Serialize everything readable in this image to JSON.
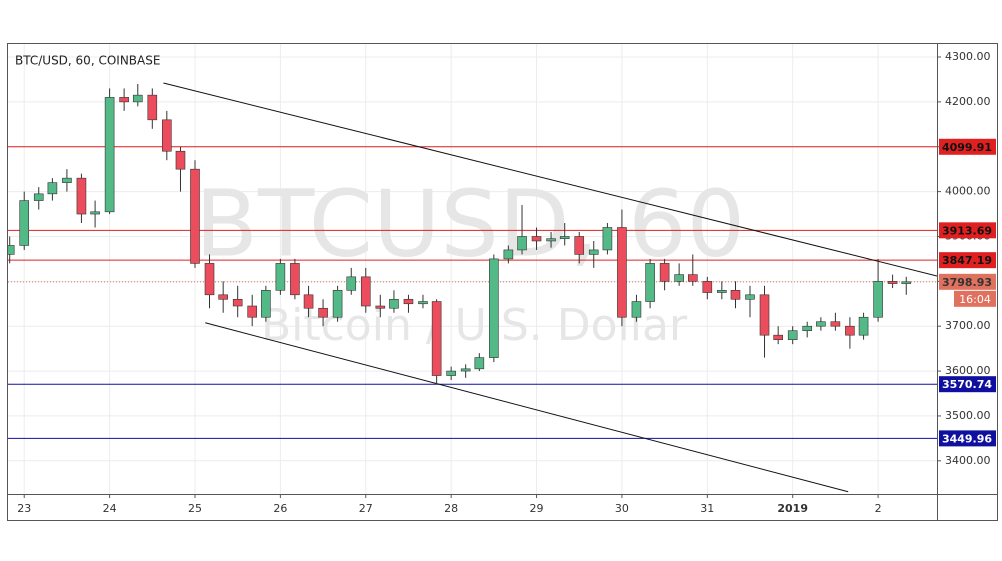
{
  "chart_data": {
    "type": "candlestick",
    "title": "BTC/USD, 60, COINBASE",
    "watermark": "BTCUSD, 60",
    "watermark_subtitle": "Bitcoin / U.S. Dollar",
    "up_color": "#53b987",
    "down_color": "#eb4d5c",
    "grid": true,
    "xlim": [
      -0.19,
      10.69
    ],
    "ylim": [
      3326,
      4329
    ],
    "xticks": [
      {
        "value": 0,
        "label": "23"
      },
      {
        "value": 1,
        "label": "24"
      },
      {
        "value": 2,
        "label": "25"
      },
      {
        "value": 3,
        "label": "26"
      },
      {
        "value": 4,
        "label": "27"
      },
      {
        "value": 5,
        "label": "28"
      },
      {
        "value": 6,
        "label": "29"
      },
      {
        "value": 7,
        "label": "30"
      },
      {
        "value": 8,
        "label": "31"
      },
      {
        "value": 9,
        "label": "2019"
      },
      {
        "value": 10,
        "label": "2"
      }
    ],
    "yticks": [
      {
        "value": 3400,
        "label": "3400.00"
      },
      {
        "value": 3500,
        "label": "3500.00"
      },
      {
        "value": 3600,
        "label": "3600.00"
      },
      {
        "value": 3700,
        "label": "3700.00"
      },
      {
        "value": 3800,
        "label": "3800.00"
      },
      {
        "value": 3900,
        "label": "3900.00"
      },
      {
        "value": 4000,
        "label": "4000.00"
      },
      {
        "value": 4100,
        "label": "4100.00"
      },
      {
        "value": 4200,
        "label": "4200.00"
      },
      {
        "value": 4300,
        "label": "4300.00"
      }
    ],
    "x": [
      -0.17,
      0,
      0.17,
      0.33,
      0.5,
      0.67,
      0.83,
      1,
      1.17,
      1.33,
      1.5,
      1.67,
      1.83,
      2,
      2.17,
      2.33,
      2.5,
      2.67,
      2.83,
      3,
      3.17,
      3.33,
      3.5,
      3.67,
      3.83,
      4,
      4.17,
      4.33,
      4.5,
      4.67,
      4.83,
      5,
      5.17,
      5.33,
      5.5,
      5.67,
      5.83,
      6,
      6.17,
      6.33,
      6.5,
      6.67,
      6.83,
      7,
      7.17,
      7.33,
      7.5,
      7.67,
      7.83,
      8,
      8.17,
      8.33,
      8.5,
      8.67,
      8.83,
      9,
      9.17,
      9.33,
      9.5,
      9.67,
      9.83,
      10,
      10.17,
      10.33
    ],
    "candles": [
      [
        3860,
        3900,
        3840,
        3880
      ],
      [
        3880,
        4000,
        3870,
        3980
      ],
      [
        3980,
        4010,
        3960,
        3995
      ],
      [
        3995,
        4030,
        3980,
        4020
      ],
      [
        4020,
        4050,
        4000,
        4030
      ],
      [
        4030,
        4040,
        3930,
        3950
      ],
      [
        3950,
        3980,
        3920,
        3955
      ],
      [
        3955,
        4230,
        3950,
        4210
      ],
      [
        4210,
        4230,
        4180,
        4200
      ],
      [
        4200,
        4240,
        4190,
        4215
      ],
      [
        4215,
        4230,
        4140,
        4160
      ],
      [
        4160,
        4180,
        4070,
        4090
      ],
      [
        4090,
        4100,
        4000,
        4050
      ],
      [
        4050,
        4070,
        3830,
        3840
      ],
      [
        3840,
        3860,
        3740,
        3770
      ],
      [
        3770,
        3800,
        3730,
        3760
      ],
      [
        3760,
        3790,
        3720,
        3745
      ],
      [
        3745,
        3770,
        3700,
        3720
      ],
      [
        3720,
        3790,
        3710,
        3780
      ],
      [
        3780,
        3850,
        3770,
        3840
      ],
      [
        3840,
        3850,
        3760,
        3770
      ],
      [
        3770,
        3790,
        3720,
        3740
      ],
      [
        3740,
        3760,
        3700,
        3720
      ],
      [
        3720,
        3790,
        3710,
        3780
      ],
      [
        3780,
        3830,
        3770,
        3810
      ],
      [
        3810,
        3830,
        3730,
        3745
      ],
      [
        3745,
        3770,
        3720,
        3740
      ],
      [
        3740,
        3780,
        3730,
        3760
      ],
      [
        3760,
        3770,
        3730,
        3750
      ],
      [
        3750,
        3770,
        3740,
        3755
      ],
      [
        3755,
        3760,
        3570,
        3590
      ],
      [
        3590,
        3610,
        3580,
        3600
      ],
      [
        3600,
        3615,
        3585,
        3605
      ],
      [
        3605,
        3640,
        3600,
        3630
      ],
      [
        3630,
        3860,
        3620,
        3850
      ],
      [
        3850,
        3880,
        3840,
        3870
      ],
      [
        3870,
        3970,
        3860,
        3900
      ],
      [
        3900,
        3920,
        3870,
        3890
      ],
      [
        3890,
        3910,
        3875,
        3895
      ],
      [
        3895,
        3930,
        3880,
        3900
      ],
      [
        3900,
        3910,
        3840,
        3860
      ],
      [
        3860,
        3890,
        3830,
        3870
      ],
      [
        3870,
        3930,
        3860,
        3920
      ],
      [
        3920,
        3960,
        3700,
        3720
      ],
      [
        3720,
        3770,
        3710,
        3755
      ],
      [
        3755,
        3850,
        3740,
        3840
      ],
      [
        3840,
        3850,
        3780,
        3800
      ],
      [
        3800,
        3840,
        3790,
        3815
      ],
      [
        3815,
        3860,
        3790,
        3800
      ],
      [
        3800,
        3810,
        3760,
        3775
      ],
      [
        3775,
        3800,
        3760,
        3780
      ],
      [
        3780,
        3800,
        3740,
        3760
      ],
      [
        3760,
        3790,
        3720,
        3770
      ],
      [
        3770,
        3790,
        3630,
        3680
      ],
      [
        3680,
        3700,
        3660,
        3670
      ],
      [
        3670,
        3700,
        3660,
        3690
      ],
      [
        3690,
        3710,
        3675,
        3700
      ],
      [
        3700,
        3720,
        3690,
        3710
      ],
      [
        3710,
        3730,
        3690,
        3700
      ],
      [
        3700,
        3720,
        3650,
        3680
      ],
      [
        3680,
        3730,
        3670,
        3720
      ],
      [
        3720,
        3850,
        3710,
        3800
      ],
      [
        3800,
        3815,
        3785,
        3795
      ],
      [
        3795,
        3810,
        3770,
        3798.93
      ]
    ],
    "levels": [
      {
        "value": 4099.91,
        "color": "#e02020"
      },
      {
        "value": 3913.69,
        "color": "#e02020"
      },
      {
        "value": 3847.19,
        "color": "#e02020"
      },
      {
        "value": 3570.74,
        "color": "#1010a0"
      },
      {
        "value": 3449.96,
        "color": "#1010a0"
      }
    ],
    "last_price": {
      "value": 3798.93,
      "color": "#e0715f"
    },
    "countdown": "16:04",
    "trendlines": [
      {
        "x": [
          1.63,
          10.69
        ],
        "y": [
          4242,
          3812
        ]
      },
      {
        "x": [
          2.12,
          9.65
        ],
        "y": [
          3707.6,
          3331
        ]
      }
    ]
  }
}
